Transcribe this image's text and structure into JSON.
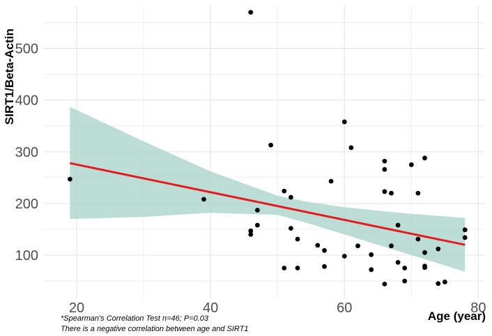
{
  "chart_data": {
    "type": "scatter",
    "xlabel": "Age (year)",
    "ylabel": "SIRT1/Beta-Actin",
    "xlim": [
      15,
      81
    ],
    "ylim": [
      15,
      583
    ],
    "xticks": [
      20,
      40,
      60,
      80
    ],
    "yticks": [
      100,
      200,
      300,
      400,
      500
    ],
    "grid": true,
    "points": [
      [
        19,
        247
      ],
      [
        39,
        208
      ],
      [
        46,
        570
      ],
      [
        46,
        147
      ],
      [
        46,
        140
      ],
      [
        47,
        187
      ],
      [
        47,
        158
      ],
      [
        49,
        313
      ],
      [
        51,
        224
      ],
      [
        51,
        75
      ],
      [
        52,
        212
      ],
      [
        52,
        152
      ],
      [
        53,
        131
      ],
      [
        53,
        75
      ],
      [
        56,
        119
      ],
      [
        57,
        109
      ],
      [
        57,
        78
      ],
      [
        58,
        243
      ],
      [
        60,
        358
      ],
      [
        60,
        98
      ],
      [
        61,
        308
      ],
      [
        62,
        118
      ],
      [
        64,
        101
      ],
      [
        64,
        72
      ],
      [
        66,
        282
      ],
      [
        66,
        266
      ],
      [
        66,
        223
      ],
      [
        66,
        44
      ],
      [
        67,
        220
      ],
      [
        67,
        118
      ],
      [
        68,
        158
      ],
      [
        68,
        86
      ],
      [
        69,
        75
      ],
      [
        69,
        50
      ],
      [
        70,
        275
      ],
      [
        71,
        220
      ],
      [
        71,
        131
      ],
      [
        72,
        288
      ],
      [
        72,
        105
      ],
      [
        72,
        79
      ],
      [
        72,
        76
      ],
      [
        74,
        112
      ],
      [
        74,
        45
      ],
      [
        75,
        48
      ],
      [
        78,
        149
      ],
      [
        78,
        134
      ]
    ],
    "fit": {
      "x": [
        19,
        78
      ],
      "y": [
        278,
        120
      ]
    },
    "band": {
      "x": [
        19,
        30,
        40,
        50,
        55,
        60,
        65,
        70,
        78
      ],
      "lower": [
        170,
        174,
        182,
        178,
        160,
        140,
        120,
        100,
        68
      ],
      "upper": [
        387,
        320,
        262,
        215,
        202,
        193,
        186,
        180,
        172
      ]
    },
    "colors": {
      "points": "#000000",
      "fit": "#e41a1c",
      "band": "#a6d1c7",
      "grid": "#e5e5e5"
    }
  },
  "notes": {
    "line1": "*Spearman's Correlation Test n=46; P=0.03",
    "line2": "There is a negative correlation between age and SIRT1"
  }
}
